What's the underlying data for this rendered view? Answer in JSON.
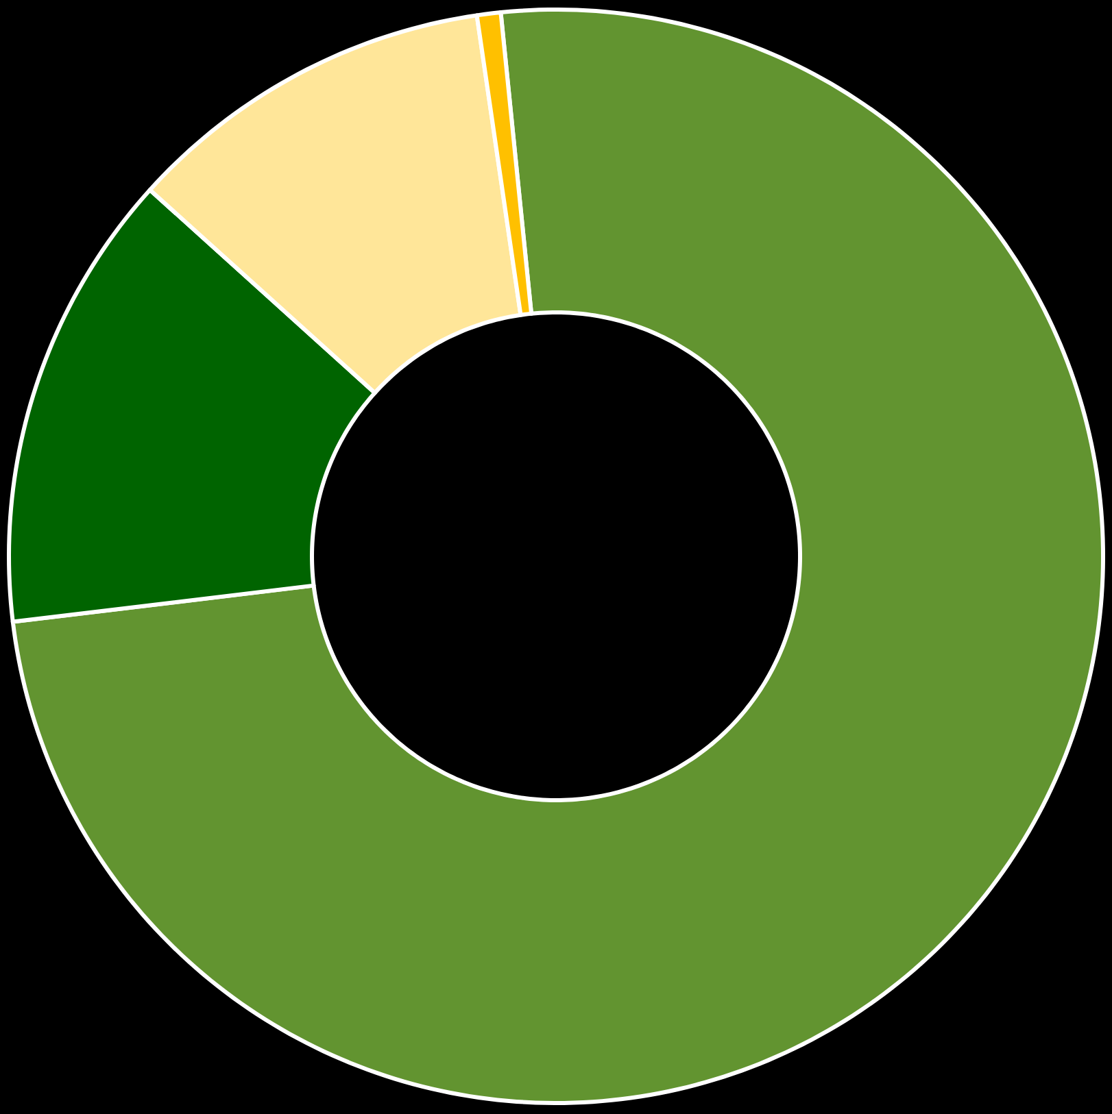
{
  "chart_data": {
    "type": "donut",
    "categories": [
      null,
      null,
      null,
      null
    ],
    "values": [
      74.7,
      13.6,
      11.0,
      0.7
    ],
    "colors": [
      "#629430",
      "#006400",
      "#ffe699",
      "#ffc000"
    ]
  }
}
